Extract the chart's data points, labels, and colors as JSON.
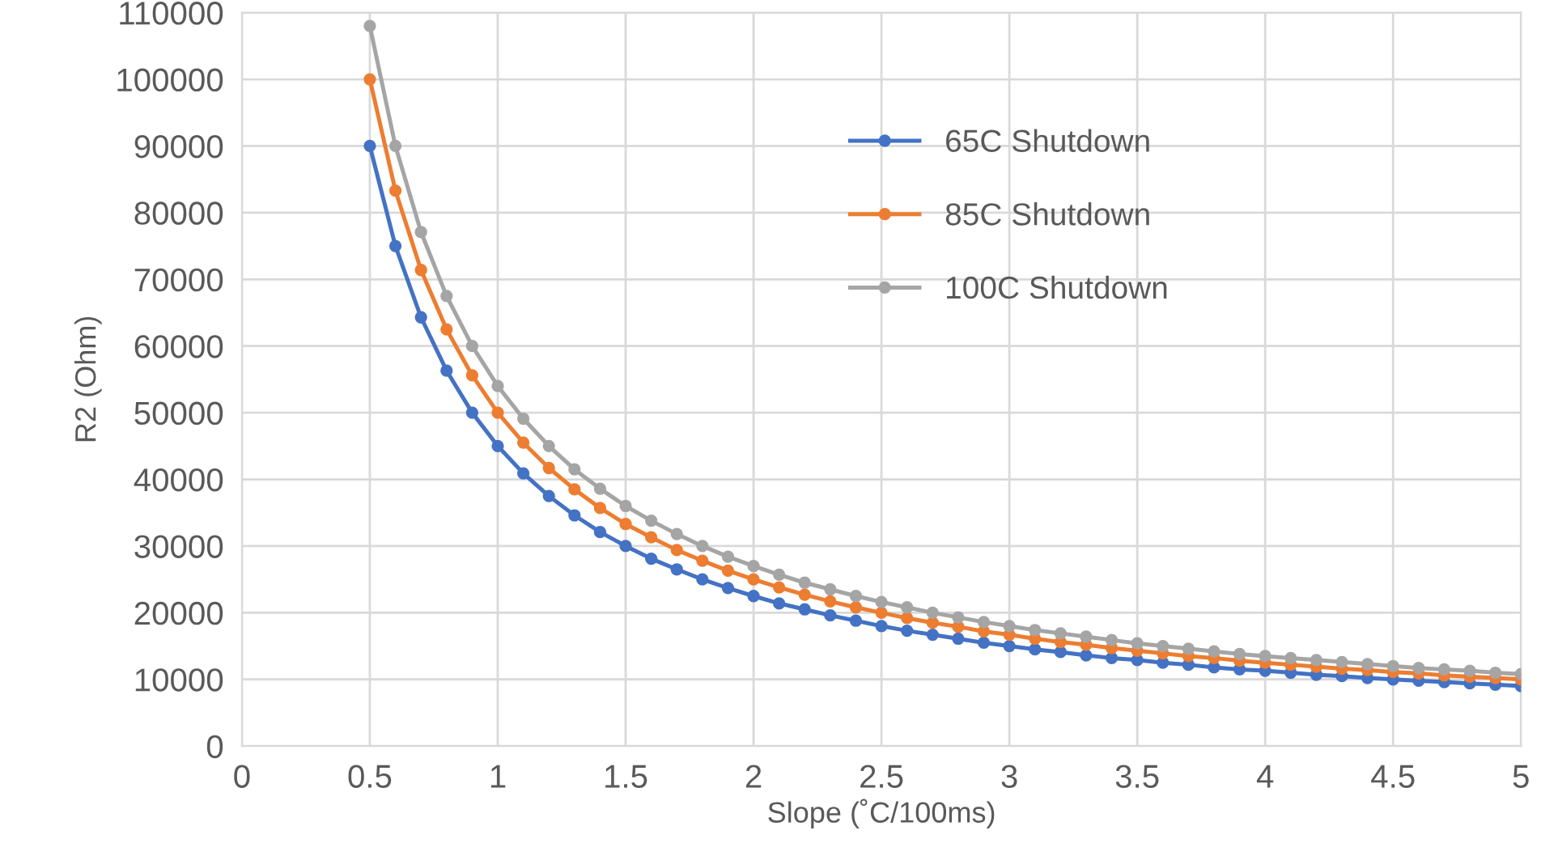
{
  "chart_data": {
    "type": "line",
    "xlabel": "Slope (˚C/100ms)",
    "ylabel": "R2 (Ohm)",
    "x": [
      0.5,
      0.6,
      0.7,
      0.8,
      0.9,
      1.0,
      1.1,
      1.2,
      1.3,
      1.4,
      1.5,
      1.6,
      1.7,
      1.8,
      1.9,
      2.0,
      2.1,
      2.2,
      2.3,
      2.4,
      2.5,
      2.6,
      2.7,
      2.8,
      2.9,
      3.0,
      3.1,
      3.2,
      3.3,
      3.4,
      3.5,
      3.6,
      3.7,
      3.8,
      3.9,
      4.0,
      4.1,
      4.2,
      4.3,
      4.4,
      4.5,
      4.6,
      4.7,
      4.8,
      4.9,
      5.0
    ],
    "series": [
      {
        "name": "65C Shutdown",
        "color": "#4472c4",
        "values": [
          90000,
          75000,
          64300,
          56300,
          50000,
          45000,
          40900,
          37500,
          34600,
          32100,
          30000,
          28100,
          26500,
          25000,
          23700,
          22500,
          21400,
          20500,
          19600,
          18800,
          18000,
          17300,
          16700,
          16100,
          15500,
          15000,
          14500,
          14100,
          13600,
          13200,
          12900,
          12500,
          12200,
          11800,
          11500,
          11300,
          11000,
          10700,
          10500,
          10200,
          10000,
          9800,
          9600,
          9400,
          9200,
          9000
        ]
      },
      {
        "name": "85C Shutdown",
        "color": "#ed7d31",
        "values": [
          100000,
          83300,
          71400,
          62500,
          55600,
          50000,
          45500,
          41700,
          38500,
          35700,
          33300,
          31300,
          29400,
          27800,
          26300,
          25000,
          23800,
          22700,
          21700,
          20800,
          20000,
          19200,
          18500,
          17900,
          17200,
          16700,
          16100,
          15600,
          15200,
          14700,
          14300,
          13900,
          13500,
          13200,
          12800,
          12500,
          12200,
          11900,
          11600,
          11400,
          11100,
          10900,
          10600,
          10400,
          10200,
          10000
        ]
      },
      {
        "name": "100C Shutdown",
        "color": "#a5a5a5",
        "values": [
          108000,
          90000,
          77100,
          67500,
          60000,
          54000,
          49100,
          45000,
          41500,
          38600,
          36000,
          33800,
          31800,
          30000,
          28400,
          27000,
          25700,
          24500,
          23500,
          22500,
          21600,
          20800,
          20000,
          19300,
          18600,
          18000,
          17400,
          16900,
          16400,
          15900,
          15400,
          15000,
          14600,
          14200,
          13800,
          13500,
          13200,
          12900,
          12600,
          12300,
          12000,
          11700,
          11500,
          11300,
          11000,
          10800
        ]
      }
    ],
    "xlim": [
      0,
      5
    ],
    "xticks": [
      0,
      0.5,
      1,
      1.5,
      2,
      2.5,
      3,
      3.5,
      4,
      4.5,
      5
    ],
    "ylim": [
      0,
      110000
    ],
    "yticks": [
      0,
      10000,
      20000,
      30000,
      40000,
      50000,
      60000,
      70000,
      80000,
      90000,
      100000,
      110000
    ],
    "grid": true,
    "legend": "top",
    "marker": "circle",
    "line_style": "solid"
  }
}
